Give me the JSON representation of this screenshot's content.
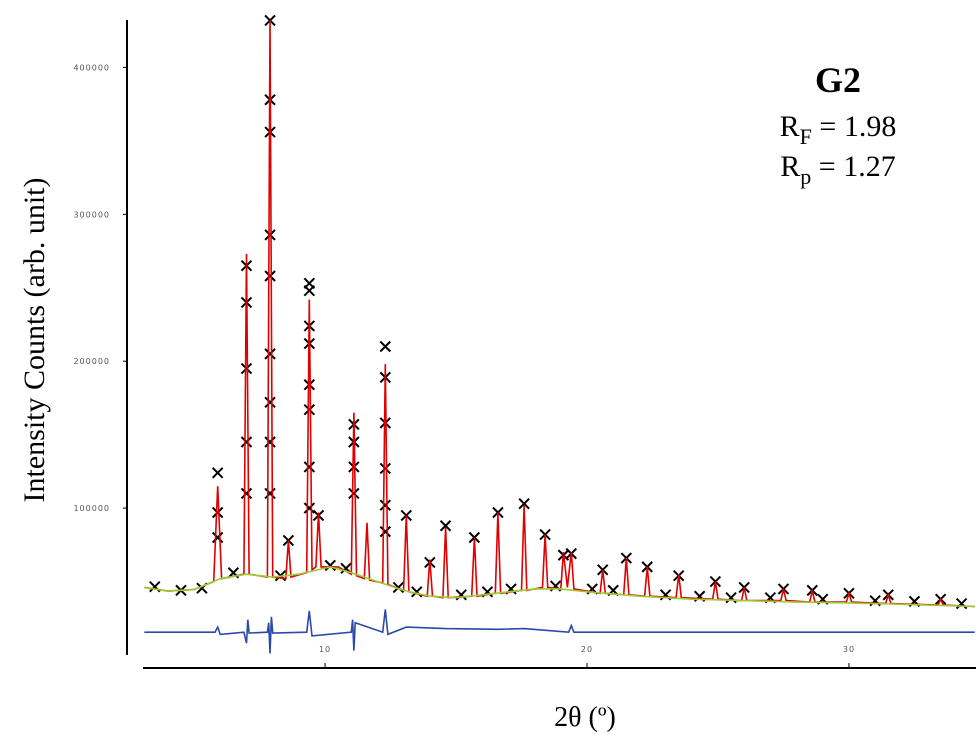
{
  "chart_data": {
    "type": "line",
    "xlabel": "2θ (º)",
    "ylabel": "Intensity Counts (arb. unit)",
    "annotations": {
      "title": "G2",
      "stats": [
        {
          "symbol": "R",
          "subscript": "F",
          "text": " = 1.98"
        },
        {
          "symbol": "R",
          "subscript": "p",
          "text": " = 1.27"
        }
      ]
    },
    "xlim": [
      3.05,
      34.85
    ],
    "xticks": [
      10,
      20,
      30
    ],
    "ylim": [
      0,
      435000
    ],
    "yticks": [
      100000,
      200000,
      300000,
      400000
    ],
    "series": [
      {
        "name": "Observed",
        "style": "cross",
        "color": "#000000",
        "x": [
          5.9,
          5.9,
          5.9,
          7.0,
          7.0,
          7.0,
          7.0,
          7.0,
          7.9,
          7.9,
          7.9,
          7.9,
          7.9,
          7.9,
          7.9,
          7.9,
          7.9,
          8.6,
          9.4,
          9.4,
          9.4,
          9.4,
          9.4,
          9.4,
          9.4,
          9.4,
          9.75,
          11.1,
          11.1,
          11.1,
          11.1,
          12.3,
          12.3,
          12.3,
          12.3,
          12.3,
          12.3,
          13.1,
          14.0,
          14.6,
          15.7,
          16.6,
          17.6,
          18.4,
          19.1,
          19.4,
          20.6,
          21.5,
          22.3,
          23.5,
          24.9,
          26.0,
          27.5,
          28.6,
          30.0,
          31.5,
          33.5,
          3.5,
          4.5,
          5.3,
          6.5,
          8.3,
          10.2,
          10.8,
          12.8,
          13.5,
          15.2,
          16.2,
          17.1,
          18.8,
          20.2,
          21.0,
          23.0,
          24.3,
          25.5,
          27.0,
          29.0,
          31.0,
          32.5,
          34.3
        ],
        "values": [
          124000,
          97000,
          80000,
          265000,
          240000,
          195000,
          145000,
          110000,
          432000,
          378000,
          356000,
          286000,
          258000,
          205000,
          172000,
          145000,
          110000,
          78000,
          253000,
          248000,
          224000,
          212000,
          184000,
          167000,
          128000,
          100000,
          95000,
          157000,
          145000,
          128000,
          110000,
          210000,
          189000,
          158000,
          127000,
          102000,
          84000,
          95000,
          63000,
          88000,
          80000,
          97000,
          103000,
          82000,
          68000,
          69000,
          58000,
          66000,
          60000,
          54000,
          50000,
          46000,
          45000,
          44000,
          42000,
          41000,
          38000,
          46500,
          44000,
          45500,
          56000,
          54000,
          61000,
          59000,
          46000,
          43000,
          41000,
          43000,
          45000,
          47000,
          45000,
          44000,
          41000,
          40000,
          39000,
          39000,
          38000,
          37000,
          36500,
          35000
        ]
      },
      {
        "name": "Calculated",
        "style": "line",
        "color": "#e00000",
        "x": [
          3.1,
          4.0,
          5.0,
          5.75,
          5.9,
          6.05,
          6.9,
          7.0,
          7.1,
          7.8,
          7.9,
          8.0,
          8.5,
          8.6,
          8.7,
          9.3,
          9.4,
          9.5,
          9.65,
          9.75,
          9.85,
          10.5,
          11.0,
          11.1,
          11.2,
          11.5,
          11.6,
          11.7,
          12.2,
          12.3,
          12.4,
          13.0,
          13.1,
          13.2,
          13.9,
          14.0,
          14.1,
          14.5,
          14.6,
          14.7,
          15.6,
          15.7,
          15.8,
          16.5,
          16.6,
          16.7,
          17.5,
          17.6,
          17.7,
          18.3,
          18.4,
          18.5,
          19.0,
          19.1,
          19.25,
          19.4,
          19.5,
          20.5,
          20.6,
          20.7,
          21.4,
          21.5,
          21.6,
          22.2,
          22.3,
          22.4,
          23.4,
          23.5,
          23.6,
          24.8,
          24.9,
          25.0,
          25.9,
          26.0,
          26.1,
          27.4,
          27.5,
          27.6,
          28.5,
          28.6,
          28.7,
          29.9,
          30.0,
          30.1,
          31.4,
          31.5,
          31.6,
          33.4,
          33.5,
          33.6,
          34.8
        ],
        "values": [
          46000,
          43500,
          44500,
          50000,
          115000,
          52000,
          55000,
          273000,
          55000,
          53000,
          432000,
          53000,
          52000,
          78000,
          53000,
          56000,
          242000,
          58000,
          60000,
          97000,
          60000,
          60000,
          55000,
          165000,
          54000,
          52000,
          90000,
          51000,
          49000,
          198000,
          48000,
          44000,
          95000,
          43000,
          40000,
          65000,
          40000,
          39000,
          87000,
          39000,
          40000,
          80000,
          40000,
          42000,
          97000,
          42000,
          44000,
          102000,
          44000,
          46000,
          82000,
          46000,
          45000,
          70000,
          46000,
          70000,
          45000,
          42000,
          58000,
          42000,
          41000,
          66000,
          41000,
          40000,
          60000,
          40000,
          39000,
          55000,
          39000,
          38000,
          50000,
          38000,
          37000,
          46000,
          37000,
          37000,
          45000,
          37000,
          36000,
          44000,
          36000,
          36000,
          42000,
          36000,
          35000,
          41000,
          35000,
          34000,
          38000,
          34000,
          33000
        ]
      },
      {
        "name": "Background",
        "style": "line",
        "color": "#9acd32",
        "x": [
          3.1,
          4.0,
          5.0,
          6.0,
          7.0,
          8.0,
          9.0,
          10.2,
          11.0,
          12.0,
          13.0,
          14.0,
          15.0,
          16.0,
          17.0,
          18.0,
          19.0,
          20.0,
          22.0,
          24.0,
          26.0,
          28.0,
          30.0,
          32.0,
          34.8
        ],
        "values": [
          46000,
          43500,
          44500,
          52000,
          55000,
          53000,
          55000,
          60000,
          56000,
          50000,
          44000,
          40000,
          39000,
          41000,
          43000,
          45000,
          45000,
          43000,
          40000,
          38000,
          37000,
          36000,
          35500,
          34500,
          33000
        ]
      },
      {
        "name": "Difference",
        "style": "line",
        "color": "#2a4aa8",
        "x": [
          3.1,
          5.8,
          5.9,
          6.0,
          6.9,
          7.0,
          7.05,
          7.1,
          7.8,
          7.85,
          7.9,
          7.95,
          8.0,
          9.3,
          9.4,
          9.5,
          11.0,
          11.05,
          11.1,
          11.15,
          12.2,
          12.3,
          12.4,
          13.1,
          14.6,
          16.6,
          17.6,
          19.3,
          19.4,
          19.5,
          34.8
        ],
        "values": [
          15500,
          15500,
          19000,
          14000,
          15500,
          8000,
          24000,
          15000,
          15500,
          22000,
          1000,
          26000,
          15000,
          15500,
          30000,
          13000,
          15500,
          24000,
          3000,
          22000,
          15500,
          31000,
          14000,
          19000,
          18000,
          17500,
          18000,
          15500,
          20000,
          15500,
          15500
        ]
      }
    ]
  }
}
